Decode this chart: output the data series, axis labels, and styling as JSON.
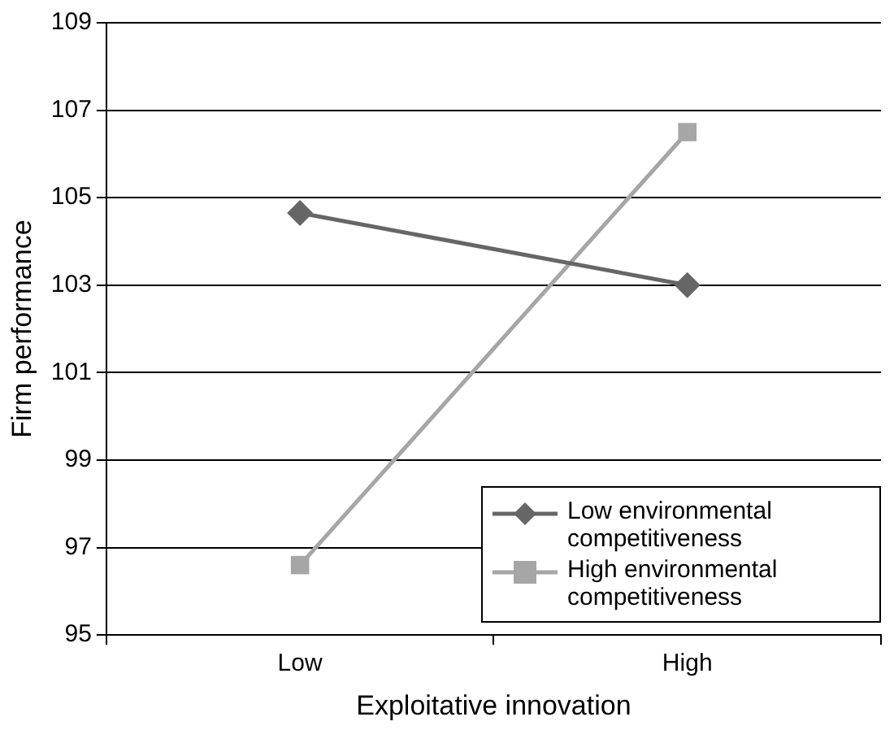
{
  "chart_data": {
    "type": "line",
    "xlabel": "Exploitative innovation",
    "ylabel": "Firm performance",
    "categories": [
      "Low",
      "High"
    ],
    "series": [
      {
        "name": "Low environmental competitiveness",
        "color": "#666666",
        "marker": "diamond",
        "values": [
          104.65,
          103.0
        ]
      },
      {
        "name": "High environmental competitiveness",
        "color": "#a6a6a6",
        "marker": "square",
        "values": [
          96.6,
          106.5
        ]
      }
    ],
    "ylim": [
      95,
      109
    ],
    "yticks": [
      95,
      97,
      99,
      101,
      103,
      105,
      107,
      109
    ],
    "grid": "y",
    "legend": "bottom right"
  }
}
